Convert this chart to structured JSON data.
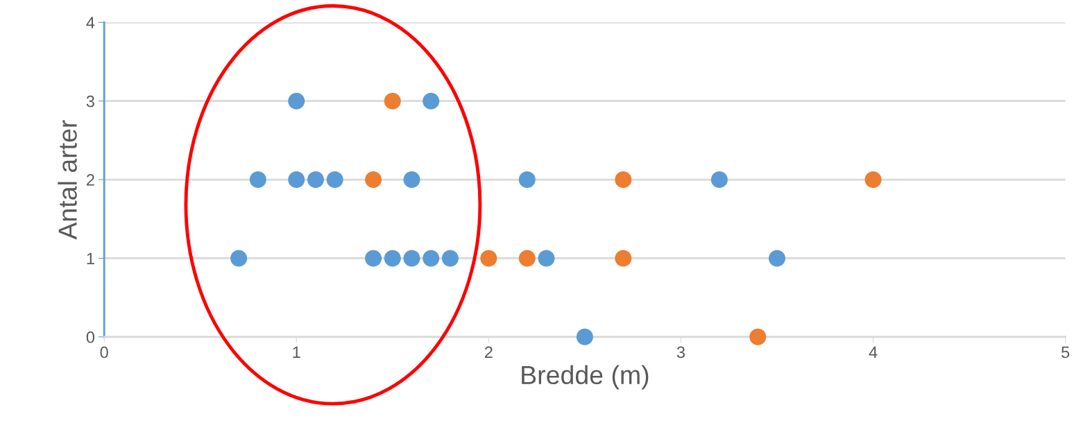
{
  "chart_data": {
    "type": "scatter",
    "xlabel": "Bredde (m)",
    "ylabel": "Antal arter",
    "xlim": [
      0,
      5
    ],
    "xticks": [
      0,
      1,
      2,
      3,
      4,
      5
    ],
    "ylim": [
      0,
      4
    ],
    "yticks": [
      0,
      1,
      2,
      3,
      4
    ],
    "grid": "y",
    "marker": "circle",
    "series": [
      {
        "color": "#5b9bd5",
        "x": [
          1,
          1.7,
          0.8,
          1.0,
          1.1,
          1.2,
          1.6,
          2.2,
          3.2,
          0.7,
          1.4,
          1.5,
          1.6,
          1.7,
          1.8,
          2.3,
          3.5,
          2.5
        ],
        "values": [
          3,
          3,
          2,
          2,
          2,
          2,
          2,
          2,
          2,
          1,
          1,
          1,
          1,
          1,
          1,
          1,
          1,
          0
        ]
      },
      {
        "color": "#ed7d31",
        "x": [
          1.5,
          1.4,
          2.7,
          4,
          2,
          2.2,
          2.7,
          3.4
        ],
        "values": [
          3,
          2,
          2,
          2,
          1,
          1,
          1,
          0
        ]
      }
    ]
  }
}
